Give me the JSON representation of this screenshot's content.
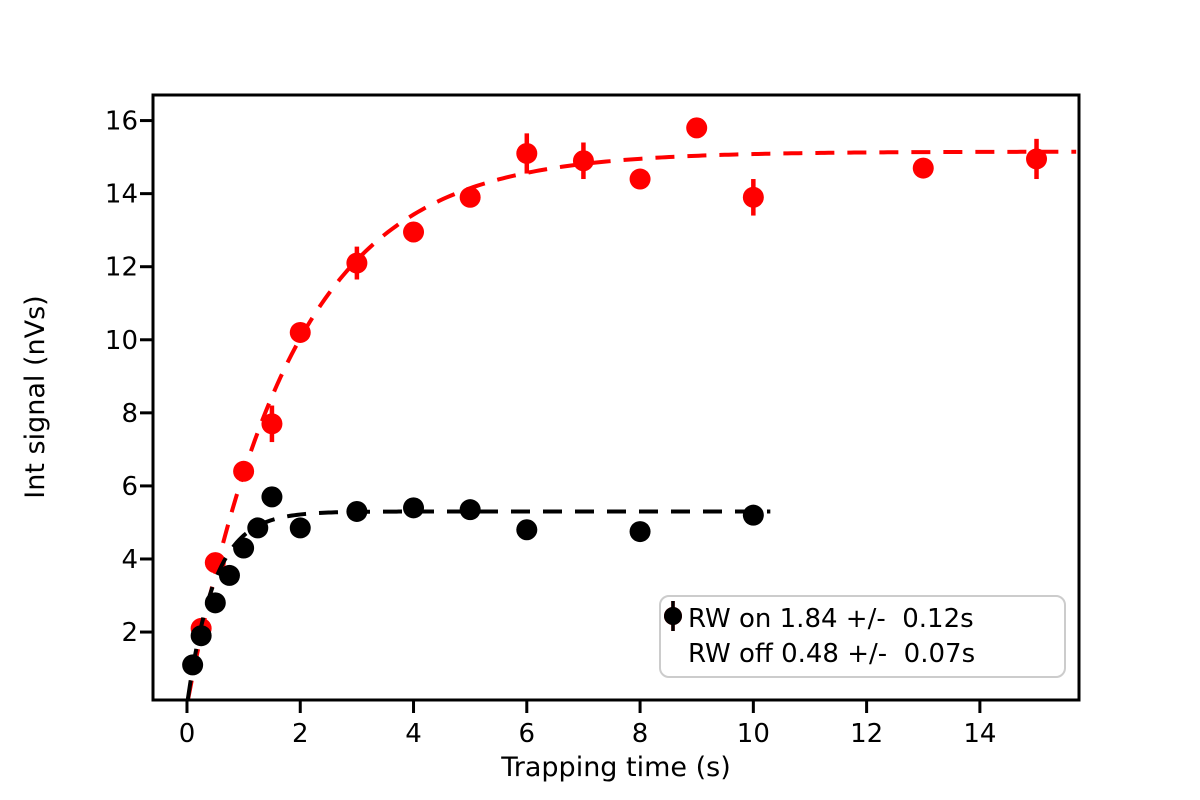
{
  "chart_data": {
    "type": "scatter",
    "title": "",
    "xlabel": "Trapping time (s)",
    "ylabel": "Int signal (nVs)",
    "xlim": [
      -0.6,
      15.75
    ],
    "ylim": [
      0.14,
      16.7
    ],
    "xticks": [
      0,
      2,
      4,
      6,
      8,
      10,
      12,
      14
    ],
    "yticks": [
      2,
      4,
      6,
      8,
      10,
      12,
      14,
      16
    ],
    "grid": false,
    "legend_position": "lower right",
    "series": [
      {
        "name": "RW on 1.84 +/-  0.12s",
        "color": "#ff0000",
        "marker": "circle",
        "line": "dashed exponential fit",
        "fit": {
          "model": "A*(1-exp(-t/tau))",
          "A": 15.15,
          "tau": 1.84,
          "t_start": 0.02,
          "t_end": 15.7
        },
        "points": [
          {
            "x": 0.25,
            "y": 2.1,
            "err": 0.15
          },
          {
            "x": 0.5,
            "y": 3.9,
            "err": 0.15
          },
          {
            "x": 1.0,
            "y": 6.4,
            "err": 0.2
          },
          {
            "x": 1.5,
            "y": 7.7,
            "err": 0.5
          },
          {
            "x": 2.0,
            "y": 10.2,
            "err": 0.15
          },
          {
            "x": 3.0,
            "y": 12.1,
            "err": 0.45
          },
          {
            "x": 4.0,
            "y": 12.95,
            "err": 0.1
          },
          {
            "x": 5.0,
            "y": 13.9,
            "err": 0.25
          },
          {
            "x": 6.0,
            "y": 15.1,
            "err": 0.55
          },
          {
            "x": 7.0,
            "y": 14.9,
            "err": 0.5
          },
          {
            "x": 8.0,
            "y": 14.4,
            "err": 0.1
          },
          {
            "x": 9.0,
            "y": 15.8,
            "err": 0.1
          },
          {
            "x": 10.0,
            "y": 13.9,
            "err": 0.5
          },
          {
            "x": 13.0,
            "y": 14.7,
            "err": 0.1
          },
          {
            "x": 15.0,
            "y": 14.95,
            "err": 0.55
          }
        ]
      },
      {
        "name": "RW off 0.48 +/-  0.07s",
        "color": "#000000",
        "marker": "circle",
        "line": "dashed exponential fit",
        "fit": {
          "model": "A*(1-exp(-t/tau))",
          "A": 5.3,
          "tau": 0.48,
          "t_start": 0.015,
          "t_end": 10.3
        },
        "points": [
          {
            "x": 0.1,
            "y": 1.1,
            "err": 0.1
          },
          {
            "x": 0.25,
            "y": 1.9,
            "err": 0.12
          },
          {
            "x": 0.5,
            "y": 2.8,
            "err": 0.1
          },
          {
            "x": 0.75,
            "y": 3.55,
            "err": 0.1
          },
          {
            "x": 1.0,
            "y": 4.3,
            "err": 0.1
          },
          {
            "x": 1.25,
            "y": 4.85,
            "err": 0.1
          },
          {
            "x": 1.5,
            "y": 5.7,
            "err": 0.1
          },
          {
            "x": 2.0,
            "y": 4.85,
            "err": 0.1
          },
          {
            "x": 3.0,
            "y": 5.3,
            "err": 0.2
          },
          {
            "x": 4.0,
            "y": 5.4,
            "err": 0.12
          },
          {
            "x": 5.0,
            "y": 5.35,
            "err": 0.12
          },
          {
            "x": 6.0,
            "y": 4.8,
            "err": 0.1
          },
          {
            "x": 8.0,
            "y": 4.75,
            "err": 0.1
          },
          {
            "x": 10.0,
            "y": 5.2,
            "err": 0.1
          }
        ]
      }
    ]
  }
}
